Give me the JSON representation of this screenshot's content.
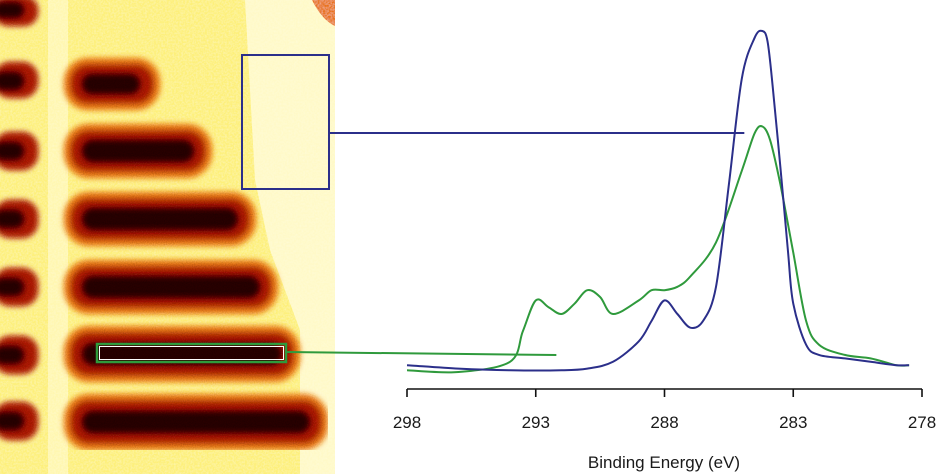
{
  "colors": {
    "map_background": "#fdf07a",
    "map_bright": "#fffcd8",
    "stripe_dark": "#2a0504",
    "stripe_mid": "#b01a0c",
    "stripe_edge": "#f37c1e",
    "region_1": "#2b2f8a",
    "region_2": "#2f9a3c",
    "axis": "#111111"
  },
  "chart_data": {
    "type": "line",
    "xlabel": "Binding Energy (eV)",
    "ylabel": "",
    "xlim": [
      298,
      278
    ],
    "x_reversed": true,
    "ylim": [
      0,
      1
    ],
    "xticks": [
      "298",
      "293",
      "288",
      "283",
      "278"
    ],
    "series": [
      {
        "color": "#2b2f8a",
        "x": [
          298,
          296,
          294,
          292,
          291,
          290,
          289,
          288.5,
          288,
          287.5,
          287,
          286.5,
          286,
          285.5,
          285,
          284.5,
          284.2,
          284,
          283.8,
          283.5,
          283.2,
          283,
          282.5,
          282,
          281,
          280,
          279,
          278.5
        ],
        "y": [
          0.02,
          0.01,
          0.005,
          0.005,
          0.01,
          0.03,
          0.09,
          0.15,
          0.21,
          0.17,
          0.13,
          0.15,
          0.25,
          0.55,
          0.86,
          0.98,
          1.0,
          0.97,
          0.84,
          0.6,
          0.35,
          0.2,
          0.08,
          0.05,
          0.04,
          0.03,
          0.02,
          0.02
        ]
      },
      {
        "color": "#2f9a3c",
        "x": [
          298,
          296,
          294,
          293.5,
          293,
          292.5,
          292,
          291.5,
          291,
          290.5,
          290,
          289,
          288.5,
          288,
          287.5,
          287,
          286,
          285,
          284.5,
          284.2,
          283.9,
          283.5,
          283,
          282.5,
          282,
          281,
          280,
          279,
          278.5
        ],
        "y": [
          0.005,
          0.0,
          0.03,
          0.12,
          0.21,
          0.19,
          0.17,
          0.2,
          0.24,
          0.22,
          0.17,
          0.21,
          0.24,
          0.24,
          0.25,
          0.28,
          0.38,
          0.59,
          0.7,
          0.72,
          0.68,
          0.55,
          0.35,
          0.15,
          0.08,
          0.05,
          0.04,
          0.02,
          0.02
        ]
      }
    ],
    "callouts": [
      {
        "region": "upper-right bright area of map",
        "series_index": 0
      },
      {
        "region": "dark stripe in map",
        "series_index": 1
      }
    ]
  }
}
